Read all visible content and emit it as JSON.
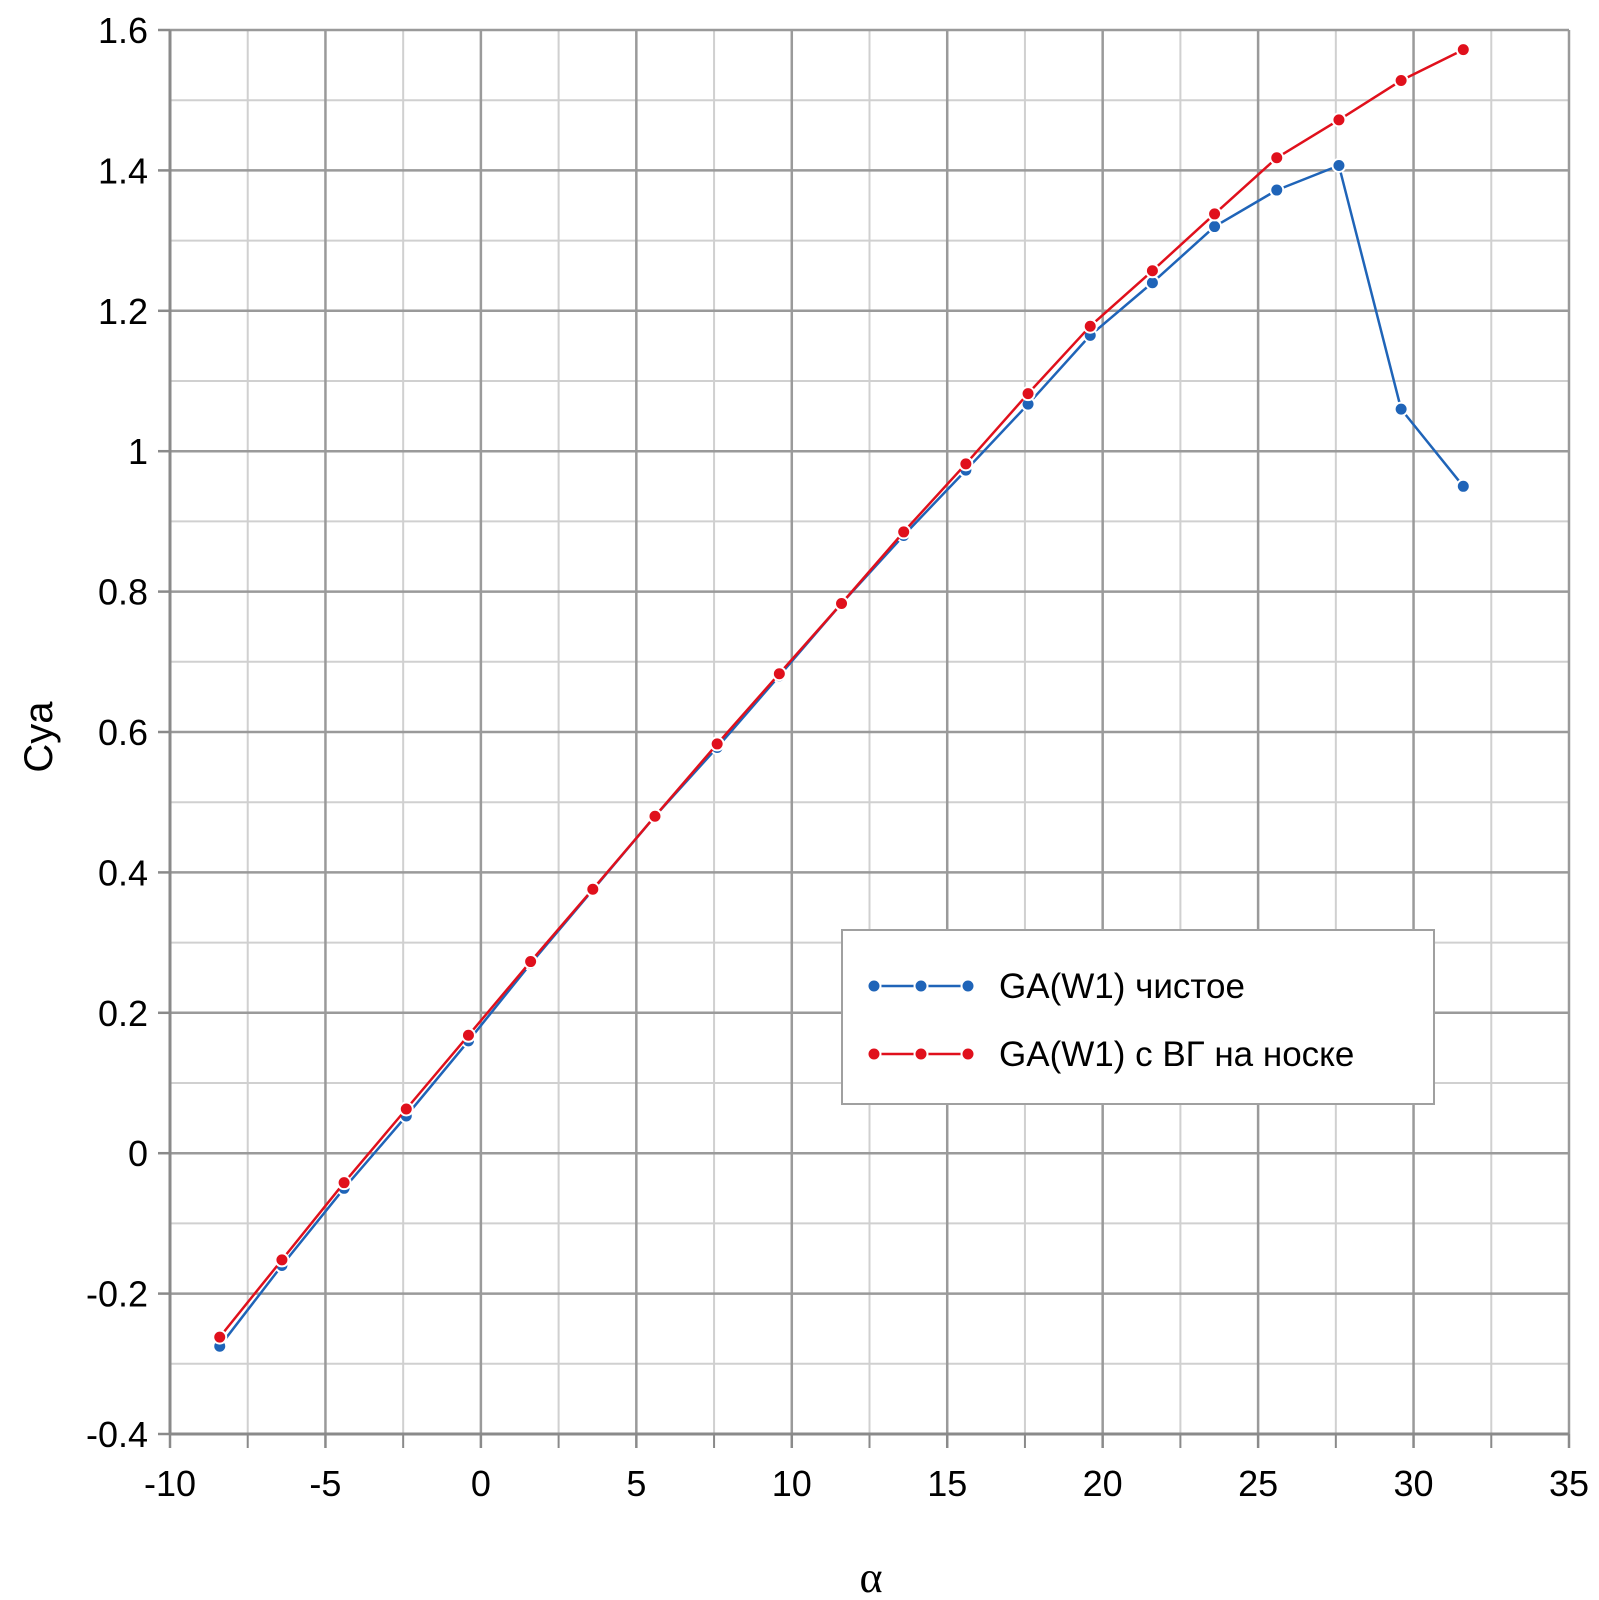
{
  "chart_data": {
    "type": "line",
    "title": "",
    "xlabel": "α",
    "ylabel": "Cya",
    "xlim": [
      -10,
      35
    ],
    "ylim": [
      -0.4,
      1.6
    ],
    "x_ticks": [
      -10,
      -5,
      0,
      5,
      10,
      15,
      20,
      25,
      30,
      35
    ],
    "y_ticks": [
      -0.4,
      -0.2,
      0,
      0.2,
      0.4,
      0.6,
      0.8,
      1,
      1.2,
      1.4,
      1.6
    ],
    "x_tick_labels": [
      "-10",
      "-5",
      "0",
      "5",
      "10",
      "15",
      "20",
      "25",
      "30",
      "35"
    ],
    "y_tick_labels": [
      "-0.4",
      "-0.2",
      "0",
      "0.2",
      "0.4",
      "0.6",
      "0.8",
      "1",
      "1.2",
      "1.4",
      "1.6"
    ],
    "grid": true,
    "legend_position": "lower-right",
    "series": [
      {
        "name": "GA(W1) чистое",
        "color": "#1f64b8",
        "x": [
          -8.4,
          -6.4,
          -4.4,
          -2.4,
          -0.4,
          1.6,
          3.6,
          5.6,
          7.6,
          9.6,
          11.6,
          13.6,
          15.6,
          17.6,
          19.6,
          21.6,
          23.6,
          25.6,
          27.6,
          29.6,
          31.6
        ],
        "y": [
          -0.275,
          -0.16,
          -0.05,
          0.053,
          0.16,
          0.27,
          0.375,
          0.48,
          0.578,
          0.68,
          0.783,
          0.88,
          0.973,
          1.067,
          1.165,
          1.24,
          1.32,
          1.372,
          1.407,
          1.06,
          0.95
        ]
      },
      {
        "name": "GA(W1) с ВГ на носке",
        "color": "#e0101c",
        "x": [
          -8.4,
          -6.4,
          -4.4,
          -2.4,
          -0.4,
          1.6,
          3.6,
          5.6,
          7.6,
          9.6,
          11.6,
          13.6,
          15.6,
          17.6,
          19.6,
          21.6,
          23.6,
          25.6,
          27.6,
          29.6,
          31.6
        ],
        "y": [
          -0.262,
          -0.152,
          -0.042,
          0.063,
          0.168,
          0.273,
          0.376,
          0.48,
          0.583,
          0.683,
          0.783,
          0.885,
          0.982,
          1.082,
          1.178,
          1.257,
          1.338,
          1.418,
          1.472,
          1.528,
          1.572
        ]
      }
    ]
  }
}
